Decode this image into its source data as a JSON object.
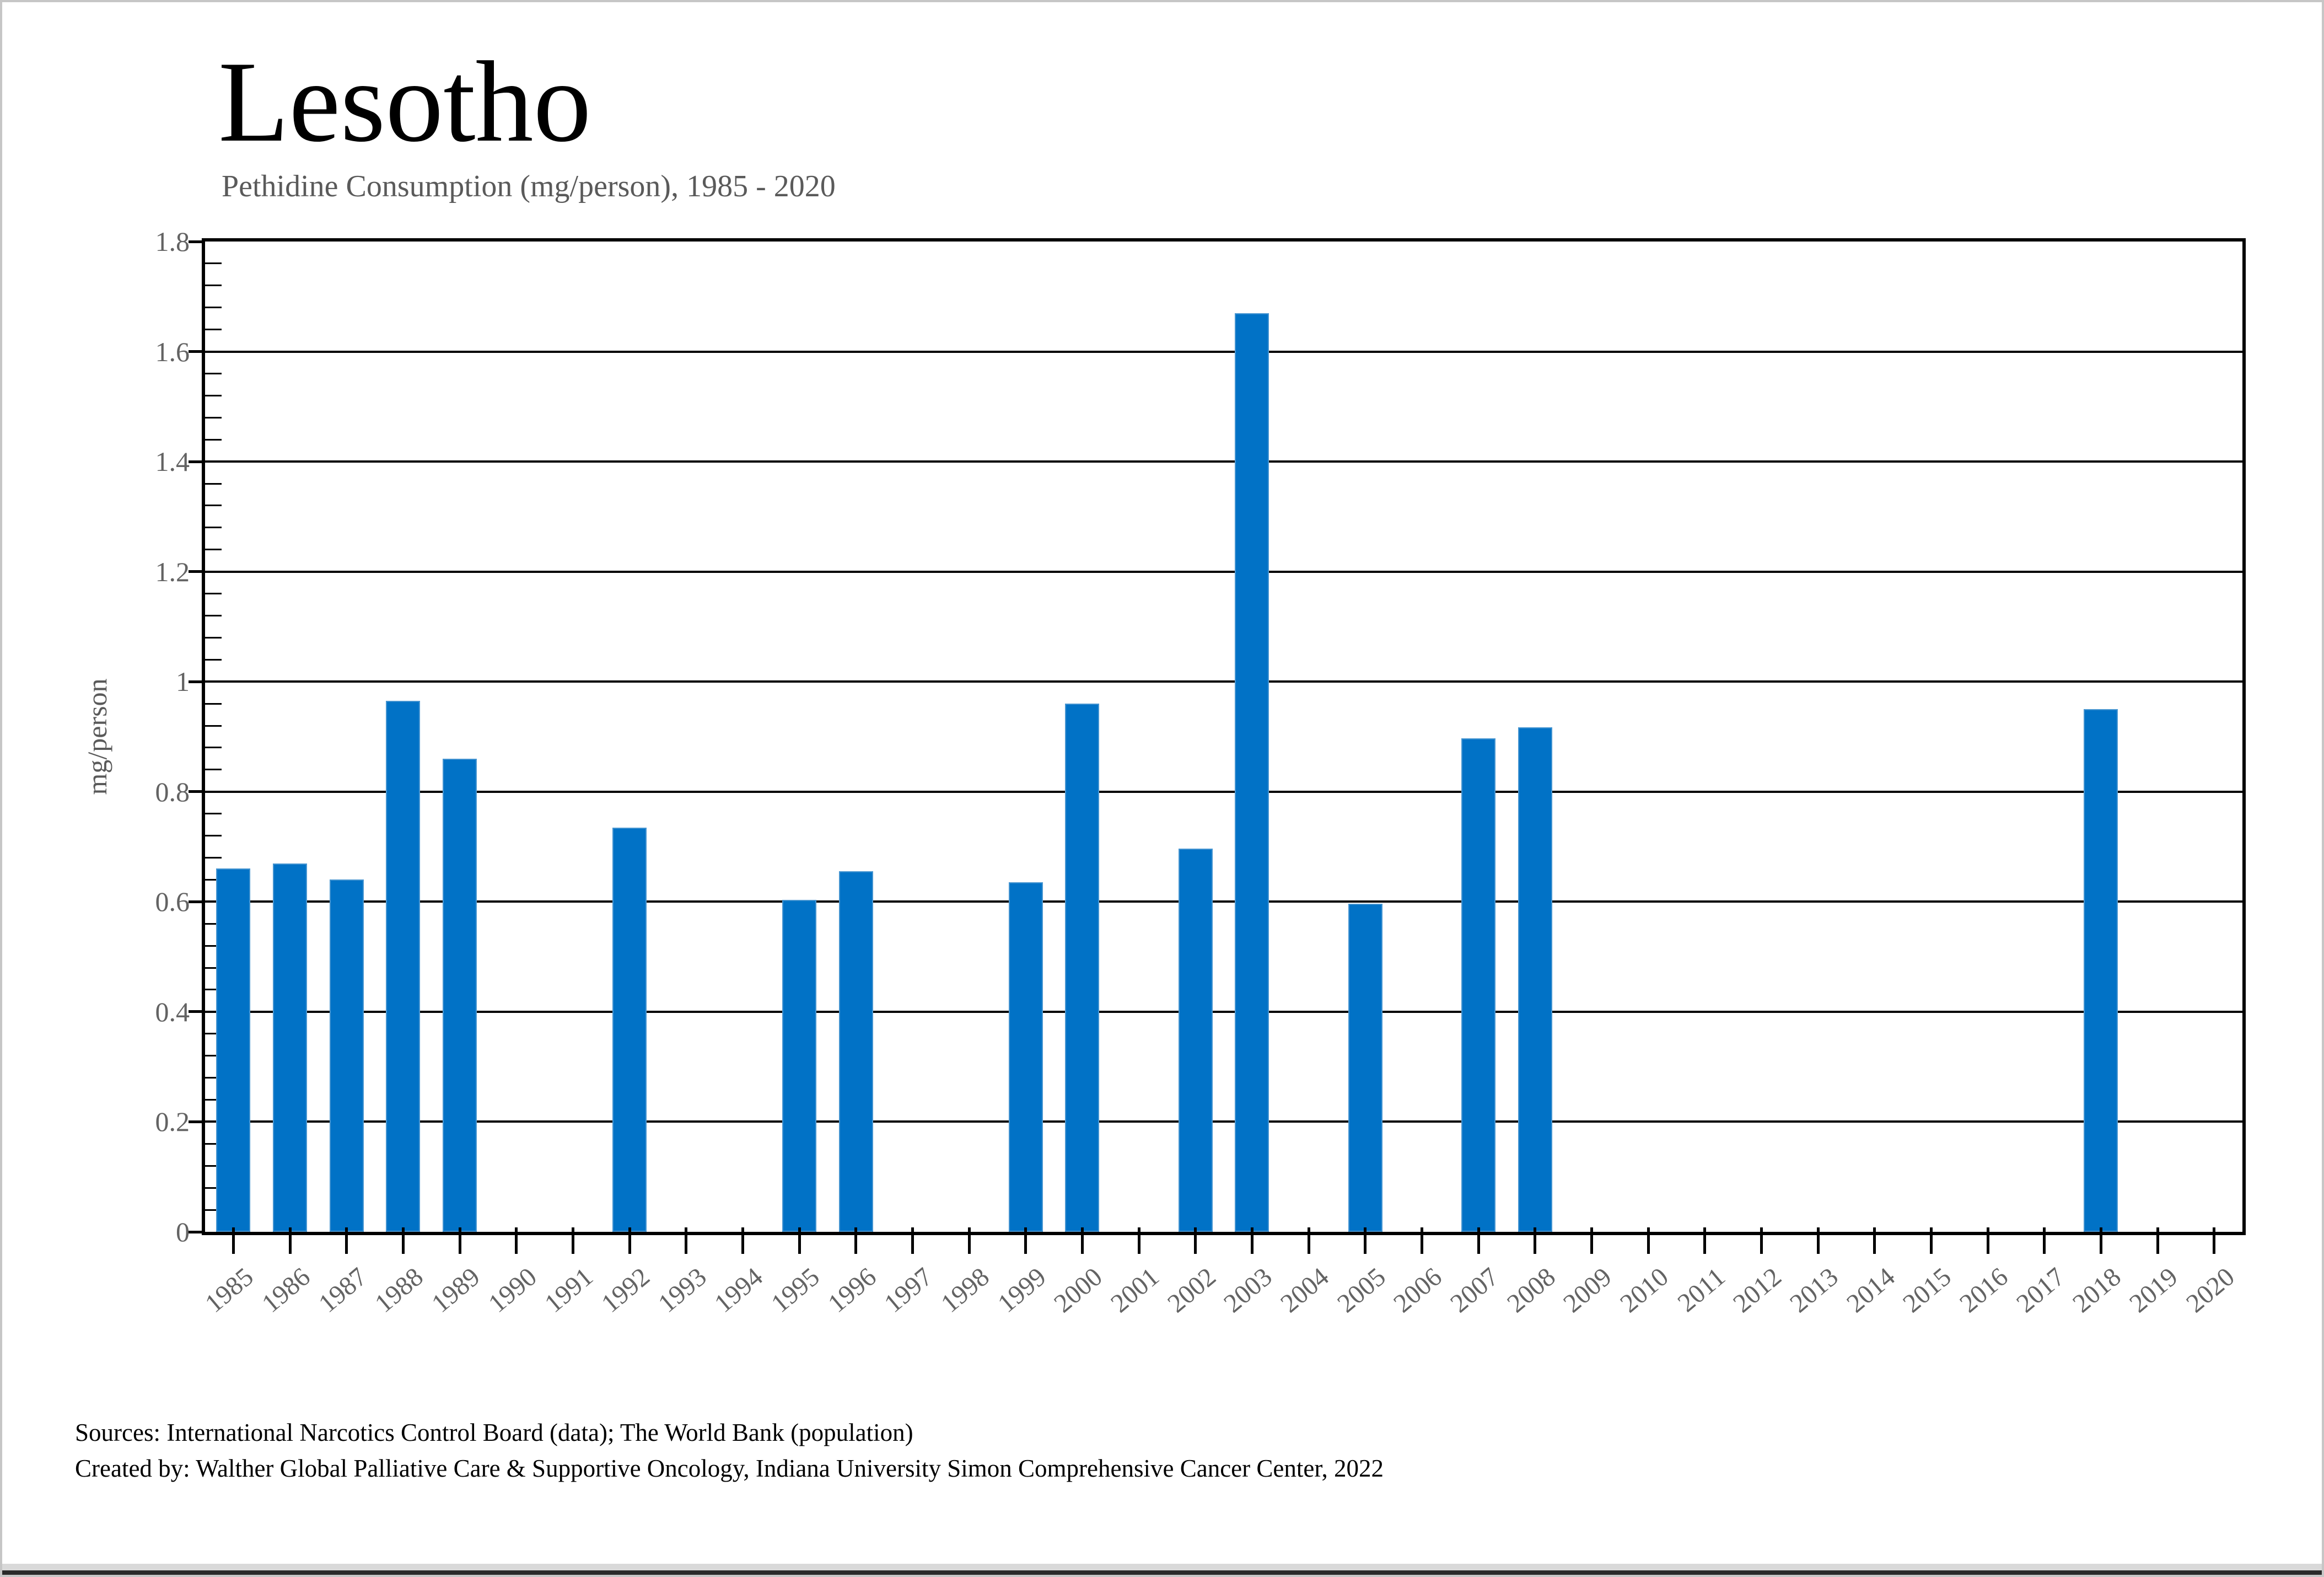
{
  "figure": {
    "title": "Lesotho",
    "subtitle": "Pethidine Consumption (mg/person), 1985 - 2020"
  },
  "chart_data": {
    "type": "bar",
    "title": "Lesotho",
    "subtitle": "Pethidine Consumption (mg/person), 1985 - 2020",
    "xlabel": "",
    "ylabel": "mg/person",
    "ylim": [
      0,
      1.8
    ],
    "ytick_step": 0.2,
    "ytick_labels": [
      "0",
      "0.2",
      "0.4",
      "0.6",
      "0.8",
      "1",
      "1.2",
      "1.4",
      "1.6",
      "1.8"
    ],
    "minor_tick_step": 0.04,
    "grid": "on",
    "legend": "none",
    "bar_color": "#0172c6",
    "bar_edge_color": "#4695d1",
    "axis_color": "#000000",
    "label_color": "#636363",
    "categories": [
      "1985",
      "1986",
      "1987",
      "1988",
      "1989",
      "1990",
      "1991",
      "1992",
      "1993",
      "1994",
      "1995",
      "1996",
      "1997",
      "1998",
      "1999",
      "2000",
      "2001",
      "2002",
      "2003",
      "2004",
      "2005",
      "2006",
      "2007",
      "2008",
      "2009",
      "2010",
      "2011",
      "2012",
      "2013",
      "2014",
      "2015",
      "2016",
      "2017",
      "2018",
      "2019",
      "2020"
    ],
    "values": [
      0.66,
      0.67,
      0.64,
      0.965,
      0.86,
      0,
      0,
      0.735,
      0,
      0,
      0.603,
      0.655,
      0,
      0,
      0.635,
      0.96,
      0,
      0.697,
      1.67,
      0,
      0.596,
      0,
      0.897,
      0.917,
      0,
      0,
      0,
      0,
      0,
      0,
      0,
      0,
      0,
      0.95,
      0,
      0
    ]
  },
  "footer": {
    "sources_line": "Sources: International Narcotics Control Board (data); The World Bank (population)",
    "created_line": "Created by: Walther Global Palliative Care & Supportive Oncology, Indiana University Simon Comprehensive Cancer Center, 2022"
  }
}
